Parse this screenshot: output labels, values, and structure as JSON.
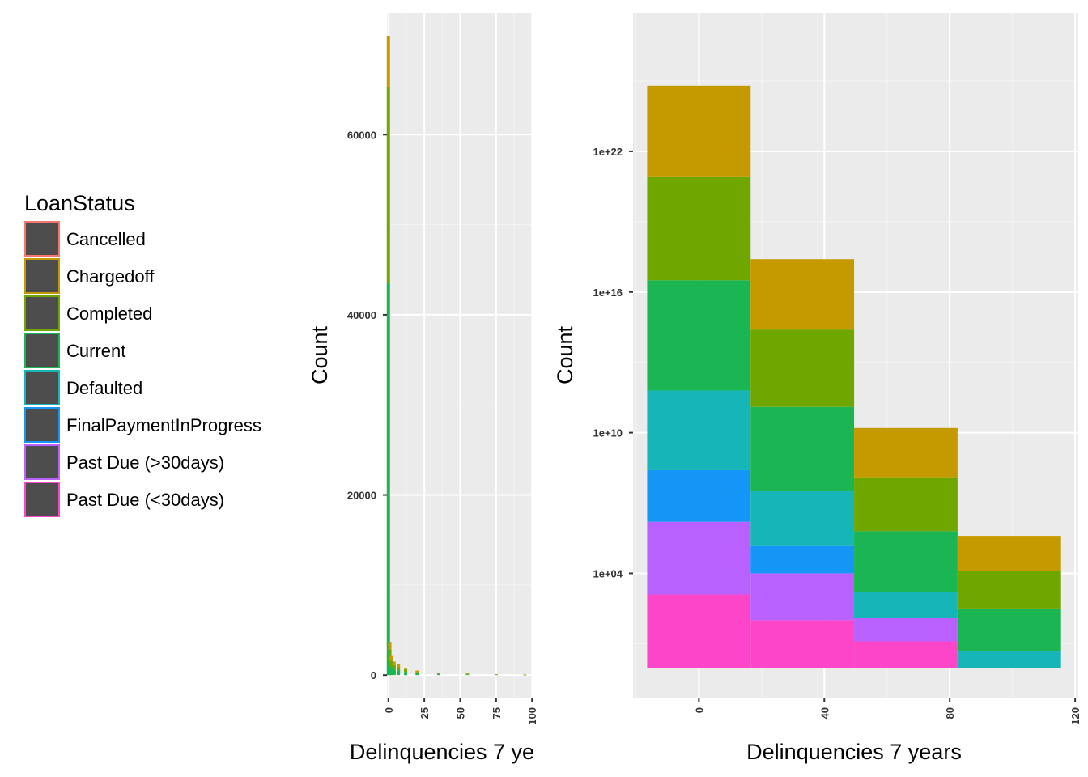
{
  "legend": {
    "title": "LoanStatus",
    "items": [
      {
        "label": "Cancelled",
        "color": "#F8766D"
      },
      {
        "label": "Chargedoff",
        "color": "#C49A00"
      },
      {
        "label": "Completed",
        "color": "#6FA700"
      },
      {
        "label": "Current",
        "color": "#1BB553"
      },
      {
        "label": "Defaulted",
        "color": "#16B6B8"
      },
      {
        "label": "FinalPaymentInProgress",
        "color": "#1396F6"
      },
      {
        "label": "Past Due (>30days)",
        "color": "#B961FF"
      },
      {
        "label": "Past Due (<30days)",
        "color": "#FC45C8"
      }
    ]
  },
  "chart_data": [
    {
      "type": "histogram",
      "stacked": true,
      "xlabel": "Delinquencies 7 ye",
      "ylabel": "Count",
      "xticks": [
        "0",
        "25",
        "50",
        "75",
        "100"
      ],
      "yticks": [
        "0",
        "20000",
        "40000",
        "60000"
      ],
      "xlim": [
        -1,
        101
      ],
      "ylim": [
        -2500,
        73500
      ],
      "grid": true,
      "bins": [
        {
          "x": 0,
          "Current": 43500,
          "Completed": 21800,
          "Chargedoff": 5600
        },
        {
          "x": 1,
          "Current": 1500,
          "Completed": 1300,
          "Chargedoff": 900
        },
        {
          "x": 2,
          "Current": 900,
          "Completed": 700,
          "Chargedoff": 600
        },
        {
          "x": 4,
          "Current": 600,
          "Completed": 500,
          "Chargedoff": 400
        },
        {
          "x": 7,
          "Current": 500,
          "Completed": 400,
          "Chargedoff": 350
        },
        {
          "x": 12,
          "Current": 350,
          "Completed": 250,
          "Chargedoff": 200
        },
        {
          "x": 20,
          "Current": 200,
          "Completed": 150,
          "Chargedoff": 150
        },
        {
          "x": 35,
          "Current": 120,
          "Completed": 90,
          "Chargedoff": 80
        },
        {
          "x": 55,
          "Current": 80,
          "Completed": 60,
          "Chargedoff": 50
        },
        {
          "x": 75,
          "Current": 40,
          "Completed": 30,
          "Chargedoff": 30
        },
        {
          "x": 95,
          "Current": 30,
          "Completed": 20,
          "Chargedoff": 20
        }
      ]
    },
    {
      "type": "histogram",
      "stacked": true,
      "y_scale": "log10",
      "xlabel": "Delinquencies 7 years",
      "ylabel": "Count",
      "xticks": [
        "0",
        "40",
        "80",
        "120"
      ],
      "yticks": [
        "1e+04",
        "1e+10",
        "1e+16",
        "1e+22"
      ],
      "xlim": [
        -21,
        121
      ],
      "ylim_log10": [
        -1.3,
        27.9
      ],
      "grid": true,
      "bins": [
        {
          "x0": -16.5,
          "x1": 16.5,
          "segments": [
            {
              "status": "Past Due (<30days)",
              "top_log10": 3.1
            },
            {
              "status": "Past Due (>30days)",
              "top_log10": 6.2
            },
            {
              "status": "FinalPaymentInProgress",
              "top_log10": 8.4
            },
            {
              "status": "Defaulted",
              "top_log10": 11.8
            },
            {
              "status": "Current",
              "top_log10": 16.5
            },
            {
              "status": "Completed",
              "top_log10": 20.9
            },
            {
              "status": "Chargedoff",
              "top_log10": 24.8
            }
          ]
        },
        {
          "x0": 16.5,
          "x1": 49.5,
          "segments": [
            {
              "status": "Past Due (<30days)",
              "top_log10": 2.0
            },
            {
              "status": "Past Due (>30days)",
              "top_log10": 4.0
            },
            {
              "status": "FinalPaymentInProgress",
              "top_log10": 5.2
            },
            {
              "status": "Defaulted",
              "top_log10": 7.5
            },
            {
              "status": "Current",
              "top_log10": 11.1
            },
            {
              "status": "Completed",
              "top_log10": 14.4
            },
            {
              "status": "Chargedoff",
              "top_log10": 17.4
            }
          ]
        },
        {
          "x0": 49.5,
          "x1": 82.5,
          "segments": [
            {
              "status": "Past Due (<30days)",
              "top_log10": 1.1
            },
            {
              "status": "Past Due (>30days)",
              "top_log10": 2.1
            },
            {
              "status": "Defaulted",
              "top_log10": 3.2
            },
            {
              "status": "Current",
              "top_log10": 5.8
            },
            {
              "status": "Completed",
              "top_log10": 8.1
            },
            {
              "status": "Chargedoff",
              "top_log10": 10.2
            }
          ]
        },
        {
          "x0": 82.5,
          "x1": 115.5,
          "segments": [
            {
              "status": "Defaulted",
              "top_log10": 0.7
            },
            {
              "status": "Current",
              "top_log10": 2.5
            },
            {
              "status": "Completed",
              "top_log10": 4.1
            },
            {
              "status": "Chargedoff",
              "top_log10": 5.6
            }
          ]
        }
      ]
    }
  ]
}
